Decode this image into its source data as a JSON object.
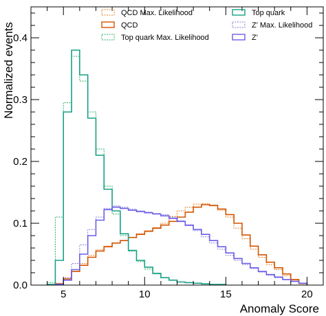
{
  "chart_data": {
    "type": "histogram",
    "xlabel": "Anomaly Score",
    "ylabel": "Normalized events",
    "xlim": [
      3,
      21
    ],
    "ylim": [
      0,
      0.45
    ],
    "xticks": [
      "5",
      "10",
      "15",
      "20"
    ],
    "yticks": [
      "0.0",
      "0.1",
      "0.2",
      "0.3",
      "0.4"
    ],
    "grid": false,
    "legend_position": "top-right, two columns",
    "series": [
      {
        "name": "QCD Max. Likelihood",
        "color": "#e67e22",
        "style": "dotted",
        "x_edges": [
          4.5,
          5.0,
          5.5,
          6.0,
          6.5,
          7.0,
          7.5,
          8.0,
          8.5,
          9.0,
          9.5,
          10.0,
          10.5,
          11.0,
          11.5,
          12.0,
          12.5,
          13.0,
          13.5,
          14.0,
          14.5,
          15.0,
          15.5,
          16.0,
          16.5,
          17.0,
          17.5,
          18.0,
          18.5,
          19.0,
          19.5,
          20.0
        ],
        "values": [
          0.003,
          0.012,
          0.025,
          0.035,
          0.048,
          0.057,
          0.063,
          0.068,
          0.072,
          0.077,
          0.083,
          0.088,
          0.093,
          0.1,
          0.111,
          0.12,
          0.126,
          0.131,
          0.132,
          0.128,
          0.121,
          0.11,
          0.092,
          0.075,
          0.058,
          0.045,
          0.033,
          0.025,
          0.015,
          0.008,
          0.002
        ]
      },
      {
        "name": "QCD",
        "color": "#d35400",
        "style": "solid",
        "x_edges": [
          4.5,
          5.0,
          5.5,
          6.0,
          6.5,
          7.0,
          7.5,
          8.0,
          8.5,
          9.0,
          9.5,
          10.0,
          10.5,
          11.0,
          11.5,
          12.0,
          12.5,
          13.0,
          13.5,
          14.0,
          14.5,
          15.0,
          15.5,
          16.0,
          16.5,
          17.0,
          17.5,
          18.0,
          18.5,
          19.0,
          19.5,
          20.0
        ],
        "values": [
          0.002,
          0.01,
          0.022,
          0.032,
          0.045,
          0.055,
          0.062,
          0.068,
          0.072,
          0.077,
          0.082,
          0.087,
          0.092,
          0.097,
          0.103,
          0.11,
          0.118,
          0.126,
          0.13,
          0.129,
          0.123,
          0.114,
          0.1,
          0.081,
          0.063,
          0.049,
          0.037,
          0.028,
          0.018,
          0.009,
          0.003
        ]
      },
      {
        "name": "Top quark Max. Likelihood",
        "color": "#27ae60",
        "style": "dotted",
        "x_edges": [
          4.0,
          4.5,
          5.0,
          5.5,
          6.0,
          6.5,
          7.0,
          7.5,
          8.0,
          8.5,
          9.0,
          9.5,
          10.0,
          10.5,
          11.0,
          11.5,
          12.0,
          12.5,
          13.0,
          13.5,
          14.0,
          14.5,
          15.0
        ],
        "values": [
          0.004,
          0.11,
          0.295,
          0.37,
          0.33,
          0.28,
          0.22,
          0.16,
          0.115,
          0.08,
          0.055,
          0.038,
          0.026,
          0.018,
          0.012,
          0.008,
          0.005,
          0.004,
          0.003,
          0.002,
          0.001,
          0.001
        ]
      },
      {
        "name": "Top quark",
        "color": "#16a085",
        "style": "solid",
        "x_edges": [
          4.0,
          4.5,
          5.0,
          5.5,
          6.0,
          6.5,
          7.0,
          7.5,
          8.0,
          8.5,
          9.0,
          9.5,
          10.0,
          10.5,
          11.0,
          11.5,
          12.0,
          12.5,
          13.0,
          13.5,
          14.0,
          14.5,
          15.0
        ],
        "values": [
          0.001,
          0.04,
          0.28,
          0.38,
          0.34,
          0.27,
          0.21,
          0.155,
          0.12,
          0.083,
          0.056,
          0.04,
          0.029,
          0.019,
          0.012,
          0.008,
          0.005,
          0.004,
          0.003,
          0.002,
          0.001,
          0.001
        ]
      },
      {
        "name": "Z' Max. Likelihood",
        "color": "#7f7fd5",
        "style": "dotted",
        "x_edges": [
          4.5,
          5.0,
          5.5,
          6.0,
          6.5,
          7.0,
          7.5,
          8.0,
          8.5,
          9.0,
          9.5,
          10.0,
          10.5,
          11.0,
          11.5,
          12.0,
          12.5,
          13.0,
          13.5,
          14.0,
          14.5,
          15.0,
          15.5,
          16.0,
          16.5,
          17.0,
          17.5,
          18.0,
          18.5,
          19.0,
          19.5,
          20.0
        ],
        "values": [
          0.002,
          0.012,
          0.035,
          0.065,
          0.09,
          0.11,
          0.124,
          0.128,
          0.126,
          0.123,
          0.12,
          0.118,
          0.116,
          0.114,
          0.11,
          0.104,
          0.096,
          0.088,
          0.078,
          0.068,
          0.058,
          0.048,
          0.04,
          0.033,
          0.027,
          0.021,
          0.016,
          0.012,
          0.009,
          0.006,
          0.003
        ]
      },
      {
        "name": "Z'",
        "color": "#6c5ce7",
        "style": "solid",
        "x_edges": [
          4.5,
          5.0,
          5.5,
          6.0,
          6.5,
          7.0,
          7.5,
          8.0,
          8.5,
          9.0,
          9.5,
          10.0,
          10.5,
          11.0,
          11.5,
          12.0,
          12.5,
          13.0,
          13.5,
          14.0,
          14.5,
          15.0,
          15.5,
          16.0,
          16.5,
          17.0,
          17.5,
          18.0,
          18.5,
          19.0,
          19.5,
          20.0
        ],
        "values": [
          0.001,
          0.008,
          0.025,
          0.05,
          0.08,
          0.105,
          0.122,
          0.126,
          0.124,
          0.121,
          0.119,
          0.117,
          0.115,
          0.112,
          0.108,
          0.103,
          0.097,
          0.09,
          0.082,
          0.072,
          0.062,
          0.052,
          0.043,
          0.035,
          0.028,
          0.022,
          0.017,
          0.013,
          0.009,
          0.006,
          0.003
        ]
      }
    ]
  }
}
